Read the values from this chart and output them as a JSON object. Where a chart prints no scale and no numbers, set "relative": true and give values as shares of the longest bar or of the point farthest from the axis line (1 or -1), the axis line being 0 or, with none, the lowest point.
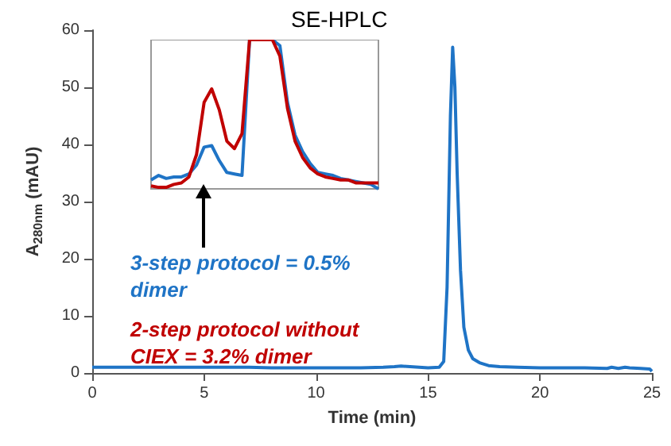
{
  "chart_data": [
    {
      "type": "line",
      "title": "SE-HPLC",
      "xlabel": "Time (min)",
      "ylabel": "A$_{280nm}$ (mAU)",
      "annotations": [
        "3-step protocol = 0.5% dimer",
        "2-step protocol without CIEX = 3.2% dimer"
      ],
      "series": [
        {
          "color": "#1f74c6",
          "x": [
            0,
            1,
            2,
            3,
            4,
            5,
            6,
            7,
            8,
            9,
            10,
            11,
            12,
            13,
            13.5,
            13.8,
            14.2,
            15,
            15.5,
            15.7,
            15.85,
            16.0,
            16.1,
            16.2,
            16.3,
            16.45,
            16.6,
            16.8,
            17.0,
            17.3,
            17.7,
            18.2,
            19,
            20,
            21,
            22,
            23,
            23.2,
            23.5,
            23.8,
            24,
            24.5,
            24.9,
            25
          ],
          "values": [
            1.0,
            1.0,
            1.0,
            1.0,
            1.0,
            1.0,
            1.0,
            1.0,
            0.9,
            0.9,
            0.9,
            0.9,
            0.9,
            1.0,
            1.1,
            1.2,
            1.1,
            0.9,
            1.0,
            2,
            15,
            45,
            57,
            50,
            35,
            18,
            8,
            4,
            2.5,
            1.8,
            1.3,
            1.1,
            1.0,
            0.9,
            0.9,
            0.9,
            0.8,
            1.0,
            0.8,
            1.0,
            0.9,
            0.8,
            0.7,
            0.3
          ]
        }
      ],
      "xlim": [
        0,
        25
      ],
      "xticks": [
        0,
        5,
        10,
        15,
        20,
        25
      ],
      "ylim": [
        0,
        60
      ],
      "yticks": [
        0,
        10,
        20,
        30,
        40,
        50,
        60
      ],
      "grid": false,
      "marker": "none"
    },
    {
      "type": "line",
      "relative": true,
      "grid": false,
      "marker": "none",
      "categories": [
        null,
        null,
        null,
        null,
        null,
        null,
        null,
        null,
        null,
        null,
        null,
        null,
        null,
        null,
        null,
        null,
        null,
        null,
        null,
        null,
        null,
        null,
        null,
        null,
        null,
        null,
        null,
        null,
        null,
        null,
        null
      ],
      "series": [
        {
          "color": "#1f74c6",
          "values": [
            0.06,
            0.09,
            0.07,
            0.08,
            0.08,
            0.1,
            0.16,
            0.28,
            0.29,
            0.19,
            0.11,
            0.1,
            0.09,
            1,
            1,
            1,
            1,
            0.96,
            0.58,
            0.36,
            0.25,
            0.17,
            0.11,
            0.1,
            0.09,
            0.07,
            0.06,
            0.05,
            0.04,
            0.03,
            0
          ]
        },
        {
          "color": "#c00000",
          "values": [
            0.02,
            0.01,
            0.01,
            0.03,
            0.04,
            0.08,
            0.23,
            0.58,
            0.67,
            0.53,
            0.32,
            0.27,
            0.37,
            1,
            1,
            1,
            1,
            0.89,
            0.54,
            0.32,
            0.21,
            0.14,
            0.1,
            0.08,
            0.07,
            0.06,
            0.06,
            0.04,
            0.04,
            0.04,
            0.04
          ]
        }
      ]
    }
  ]
}
